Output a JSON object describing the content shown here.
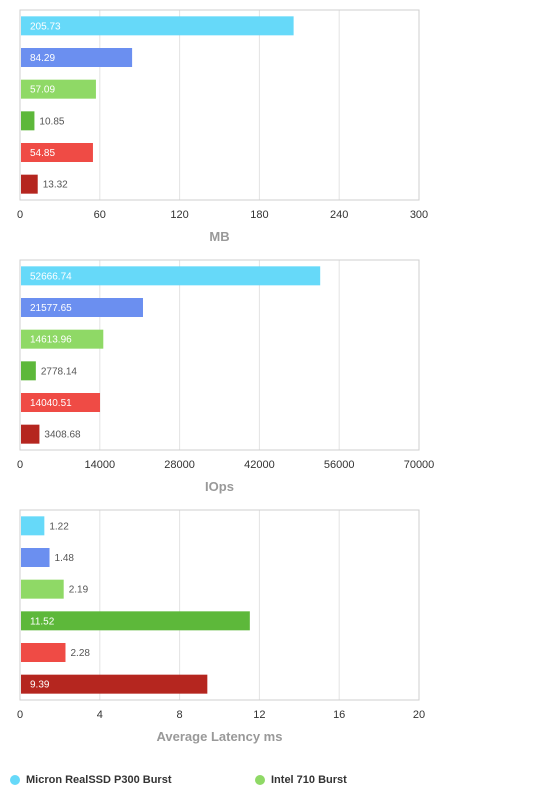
{
  "chart_data": [
    {
      "type": "bar",
      "orientation": "horizontal",
      "xlabel": "MB",
      "xlim": [
        0,
        300
      ],
      "ticks": [
        "0",
        "60",
        "120",
        "180",
        "240",
        "300"
      ],
      "tick_values": [
        0,
        60,
        120,
        180,
        240,
        300
      ],
      "grid": true,
      "bars": [
        {
          "value": 205.73,
          "label": "205.73",
          "color": "#66d9f9"
        },
        {
          "value": 84.29,
          "label": "84.29",
          "color": "#6b8ff0"
        },
        {
          "value": 57.09,
          "label": "57.09",
          "color": "#8fd966"
        },
        {
          "value": 10.85,
          "label": "10.85",
          "color": "#5db83a"
        },
        {
          "value": 54.85,
          "label": "54.85",
          "color": "#ef4b45"
        },
        {
          "value": 13.32,
          "label": "13.32",
          "color": "#b5261f"
        }
      ]
    },
    {
      "type": "bar",
      "orientation": "horizontal",
      "xlabel": "IOps",
      "xlim": [
        0,
        70000
      ],
      "ticks": [
        "0",
        "14000",
        "28000",
        "42000",
        "56000",
        "70000"
      ],
      "tick_values": [
        0,
        14000,
        28000,
        42000,
        56000,
        70000
      ],
      "grid": true,
      "bars": [
        {
          "value": 52666.74,
          "label": "52666.74",
          "color": "#66d9f9"
        },
        {
          "value": 21577.65,
          "label": "21577.65",
          "color": "#6b8ff0"
        },
        {
          "value": 14613.96,
          "label": "14613.96",
          "color": "#8fd966"
        },
        {
          "value": 2778.14,
          "label": "2778.14",
          "color": "#5db83a"
        },
        {
          "value": 14040.51,
          "label": "14040.51",
          "color": "#ef4b45"
        },
        {
          "value": 3408.68,
          "label": "3408.68",
          "color": "#b5261f"
        }
      ]
    },
    {
      "type": "bar",
      "orientation": "horizontal",
      "xlabel": "Average Latency ms",
      "xlim": [
        0,
        20
      ],
      "ticks": [
        "0",
        "4",
        "8",
        "12",
        "16",
        "20"
      ],
      "tick_values": [
        0,
        4,
        8,
        12,
        16,
        20
      ],
      "grid": true,
      "bars": [
        {
          "value": 1.22,
          "label": "1.22",
          "color": "#66d9f9"
        },
        {
          "value": 1.48,
          "label": "1.48",
          "color": "#6b8ff0"
        },
        {
          "value": 2.19,
          "label": "2.19",
          "color": "#8fd966"
        },
        {
          "value": 11.52,
          "label": "11.52",
          "color": "#5db83a"
        },
        {
          "value": 2.28,
          "label": "2.28",
          "color": "#ef4b45"
        },
        {
          "value": 9.39,
          "label": "9.39",
          "color": "#b5261f"
        }
      ]
    }
  ],
  "legend": {
    "placement": "bottom",
    "items": [
      {
        "label": "Micron RealSSD P300 Burst",
        "color": "#66d9f9"
      },
      {
        "label": "Intel 710 Burst",
        "color": "#8fd966"
      }
    ]
  },
  "colors": {
    "grid": "#e3e3e3",
    "frame": "#cfcfcf",
    "tick_text": "#333333",
    "axis_title": "#999999",
    "label_outside": "#555555",
    "label_inside": "#ffffff"
  }
}
